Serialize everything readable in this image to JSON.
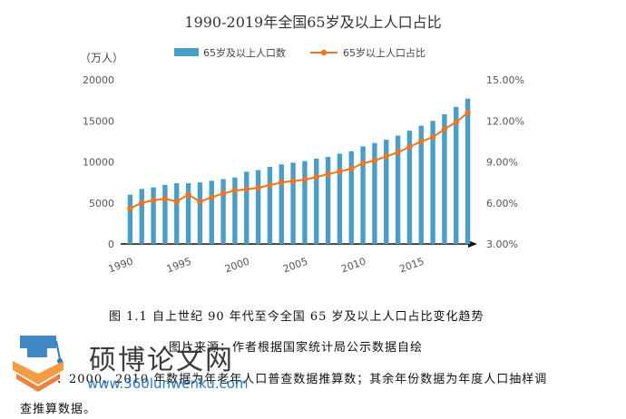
{
  "chart_data": {
    "type": "bar+line",
    "title": "1990-2019年全国65岁及以上人口占比",
    "y_left_label": "（万人）",
    "x": [
      1990,
      1991,
      1992,
      1993,
      1994,
      1995,
      1996,
      1997,
      1998,
      1999,
      2000,
      2001,
      2002,
      2003,
      2004,
      2005,
      2006,
      2007,
      2008,
      2009,
      2010,
      2011,
      2012,
      2013,
      2014,
      2015,
      2016,
      2017,
      2018,
      2019
    ],
    "x_tick_labels": [
      "1990",
      "1995",
      "2000",
      "2005",
      "2010",
      "2015"
    ],
    "y_left_ticks": [
      "0",
      "5000",
      "10000",
      "15000",
      "20000"
    ],
    "y_right_ticks": [
      "3.00%",
      "6.00%",
      "9.00%",
      "12.00%",
      "15.00%"
    ],
    "ylim_left": [
      0,
      20000
    ],
    "ylim_right": [
      3,
      15
    ],
    "legend_position": "top",
    "series": [
      {
        "name": "65岁及以上人口数",
        "kind": "bar",
        "axis": "left",
        "color": "#4a9dc6",
        "values": [
          6000,
          6700,
          6900,
          7200,
          7400,
          7400,
          7500,
          7700,
          7900,
          8100,
          8800,
          9000,
          9400,
          9700,
          9900,
          10100,
          10400,
          10600,
          11000,
          11300,
          11900,
          12300,
          12700,
          13200,
          13800,
          14400,
          15000,
          15800,
          16700,
          17700
        ]
      },
      {
        "name": "65岁以上人口占比",
        "kind": "line",
        "axis": "right",
        "color": "#e5782b",
        "values": [
          5.6,
          6.0,
          6.2,
          6.3,
          6.1,
          6.6,
          6.1,
          6.4,
          6.7,
          6.9,
          7.0,
          7.1,
          7.3,
          7.5,
          7.6,
          7.7,
          7.9,
          8.1,
          8.3,
          8.5,
          8.9,
          9.1,
          9.4,
          9.7,
          10.1,
          10.5,
          10.8,
          11.4,
          11.9,
          12.6
        ]
      }
    ]
  },
  "captions": {
    "figure": "图 1.1   自上世纪 90 年代至今全国 65 岁及以上人口占比变化趋势",
    "source": "图片来源：作者根据国家统计局公示数据自绘",
    "note1": "：2000、2010 年数据为年老年人口普查数据推算数；其余年份数据为年度人口抽样调",
    "note2": "查推算数据。"
  },
  "watermark": {
    "name": "硕博论文网",
    "url": "www.360lunwenku.com",
    "logo_icon": "graduation-cap-book-icon"
  }
}
